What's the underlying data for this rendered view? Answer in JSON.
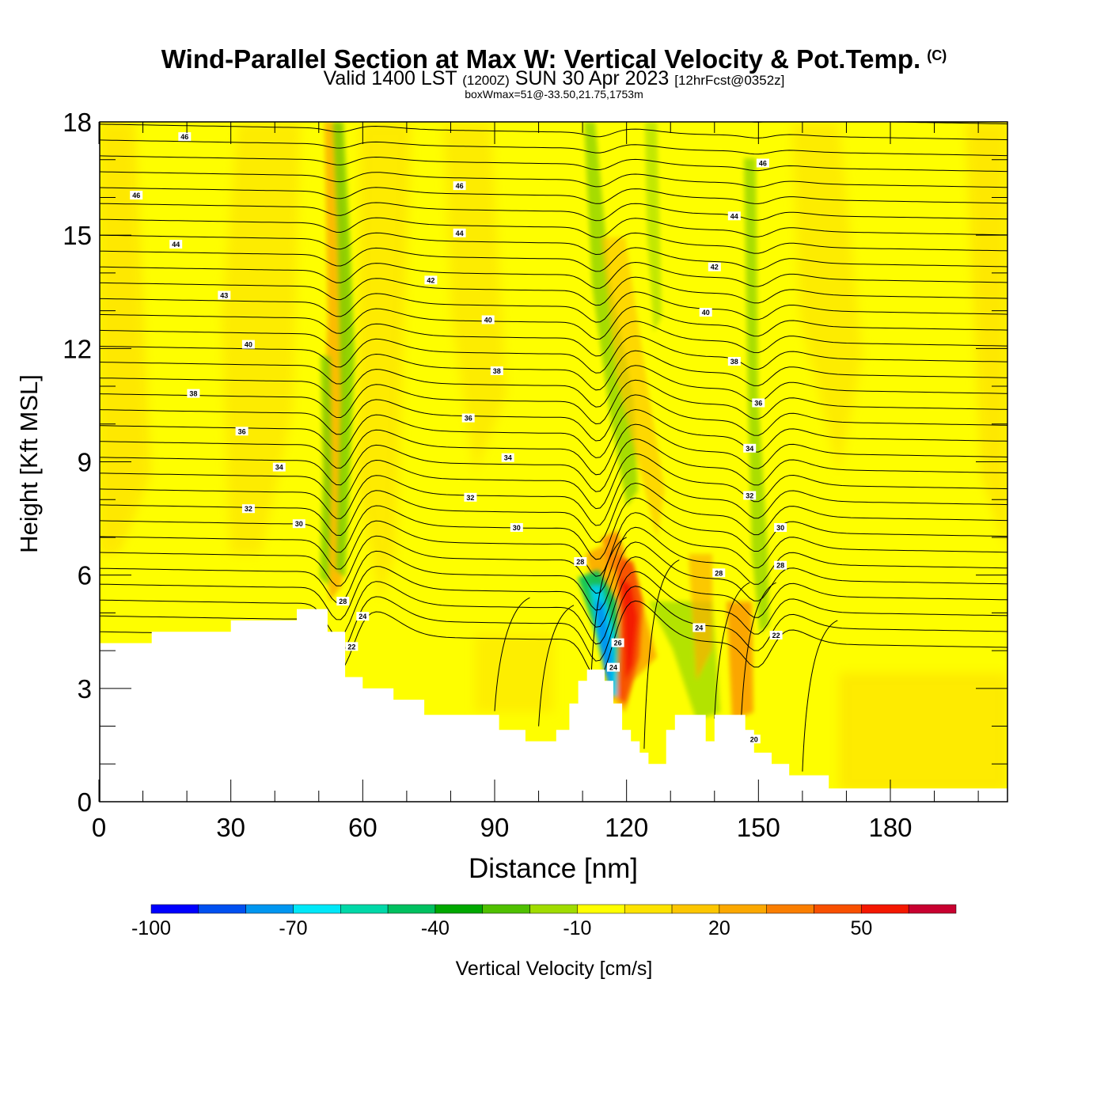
{
  "chart_data": {
    "type": "heatmap",
    "title": "Wind-Parallel Section at Max W: Vertical Velocity & Pot.Temp.",
    "title_mark": "(C)",
    "subtitle": {
      "valid": "Valid 1400 LST",
      "utc": "(1200Z)",
      "date": "SUN 30 Apr 2023",
      "forecast": "[12hrFcst@0352z]"
    },
    "subtitle2": "boxWmax=51@-33.50,21.75,1753m",
    "xlabel": "Distance [nm]",
    "ylabel": "Height [Kft MSL]",
    "xlim": [
      0,
      207
    ],
    "ylim": [
      0,
      18
    ],
    "xticks": [
      0,
      30,
      60,
      90,
      120,
      150,
      180
    ],
    "yticks": [
      0,
      3,
      6,
      9,
      12,
      15,
      18
    ],
    "colorbar": {
      "label": "Vertical Velocity [cm/s]",
      "tick_labels": [
        -100,
        -70,
        -40,
        -10,
        20,
        50
      ],
      "levels": [
        -100,
        -90,
        -80,
        -70,
        -60,
        -50,
        -40,
        -30,
        -20,
        -10,
        0,
        10,
        20,
        30,
        40,
        50,
        60,
        70
      ],
      "colors": [
        "#0000ff",
        "#0050f0",
        "#0096f0",
        "#00e8f8",
        "#00d8a8",
        "#00c060",
        "#00a800",
        "#50c000",
        "#a0dc00",
        "#ffff00",
        "#fde300",
        "#fcc600",
        "#fba800",
        "#fa7e00",
        "#f85000",
        "#f41800",
        "#c80030"
      ]
    },
    "terrain_kft": [
      [
        0,
        4.2
      ],
      [
        12,
        4.2
      ],
      [
        12,
        4.5
      ],
      [
        30,
        4.5
      ],
      [
        30,
        4.8
      ],
      [
        45,
        4.8
      ],
      [
        45,
        5.1
      ],
      [
        52,
        5.1
      ],
      [
        52,
        4.5
      ],
      [
        56,
        4.5
      ],
      [
        56,
        3.3
      ],
      [
        60,
        3.3
      ],
      [
        60,
        3.0
      ],
      [
        67,
        3.0
      ],
      [
        67,
        2.7
      ],
      [
        74,
        2.7
      ],
      [
        74,
        2.3
      ],
      [
        91,
        2.3
      ],
      [
        91,
        1.9
      ],
      [
        97,
        1.9
      ],
      [
        97,
        1.6
      ],
      [
        104,
        1.6
      ],
      [
        104,
        1.9
      ],
      [
        107,
        1.9
      ],
      [
        107,
        2.6
      ],
      [
        109,
        2.6
      ],
      [
        109,
        3.2
      ],
      [
        111,
        3.2
      ],
      [
        111,
        3.5
      ],
      [
        115,
        3.5
      ],
      [
        115,
        3.2
      ],
      [
        117,
        3.2
      ],
      [
        117,
        2.6
      ],
      [
        119,
        2.6
      ],
      [
        119,
        1.9
      ],
      [
        121,
        1.9
      ],
      [
        121,
        1.6
      ],
      [
        123,
        1.6
      ],
      [
        123,
        1.3
      ],
      [
        125,
        1.3
      ],
      [
        125,
        1.0
      ],
      [
        129,
        1.0
      ],
      [
        129,
        1.9
      ],
      [
        131,
        1.9
      ],
      [
        131,
        2.3
      ],
      [
        138,
        2.3
      ],
      [
        138,
        1.6
      ],
      [
        140,
        1.6
      ],
      [
        140,
        2.3
      ],
      [
        147,
        2.3
      ],
      [
        147,
        1.9
      ],
      [
        149,
        1.9
      ],
      [
        149,
        1.3
      ],
      [
        153,
        1.3
      ],
      [
        153,
        1.0
      ],
      [
        157,
        1.0
      ],
      [
        157,
        0.7
      ],
      [
        166,
        0.7
      ],
      [
        166,
        0.35
      ],
      [
        207,
        0.35
      ]
    ],
    "theta_labels": [
      {
        "text": "46",
        "x": 19.5,
        "y": 17.6
      },
      {
        "text": "46",
        "x": 8.5,
        "y": 16.05
      },
      {
        "text": "46",
        "x": 82,
        "y": 16.3
      },
      {
        "text": "46",
        "x": 151,
        "y": 16.9
      },
      {
        "text": "44",
        "x": 17.5,
        "y": 14.75
      },
      {
        "text": "44",
        "x": 82,
        "y": 15.05
      },
      {
        "text": "44",
        "x": 144.5,
        "y": 15.5
      },
      {
        "text": "43",
        "x": 28.5,
        "y": 13.4
      },
      {
        "text": "42",
        "x": 75.5,
        "y": 13.8
      },
      {
        "text": "42",
        "x": 140,
        "y": 14.15
      },
      {
        "text": "40",
        "x": 34,
        "y": 12.1
      },
      {
        "text": "40",
        "x": 88.5,
        "y": 12.75
      },
      {
        "text": "40",
        "x": 138,
        "y": 12.95
      },
      {
        "text": "38",
        "x": 21.5,
        "y": 10.8
      },
      {
        "text": "38",
        "x": 90.5,
        "y": 11.4
      },
      {
        "text": "38",
        "x": 144.5,
        "y": 11.65
      },
      {
        "text": "36",
        "x": 32.5,
        "y": 9.8
      },
      {
        "text": "36",
        "x": 84,
        "y": 10.15
      },
      {
        "text": "36",
        "x": 150,
        "y": 10.55
      },
      {
        "text": "34",
        "x": 41,
        "y": 8.85
      },
      {
        "text": "34",
        "x": 93,
        "y": 9.1
      },
      {
        "text": "34",
        "x": 148,
        "y": 9.35
      },
      {
        "text": "32",
        "x": 34,
        "y": 7.75
      },
      {
        "text": "32",
        "x": 84.5,
        "y": 8.05
      },
      {
        "text": "32",
        "x": 148,
        "y": 8.1
      },
      {
        "text": "30",
        "x": 45.5,
        "y": 7.35
      },
      {
        "text": "30",
        "x": 95,
        "y": 7.25
      },
      {
        "text": "30",
        "x": 155,
        "y": 7.25
      },
      {
        "text": "28",
        "x": 55.5,
        "y": 5.3
      },
      {
        "text": "28",
        "x": 109.5,
        "y": 6.35
      },
      {
        "text": "28",
        "x": 141,
        "y": 6.05
      },
      {
        "text": "28",
        "x": 155,
        "y": 6.25
      },
      {
        "text": "24",
        "x": 60,
        "y": 4.9
      },
      {
        "text": "24",
        "x": 136.5,
        "y": 4.6
      },
      {
        "text": "22",
        "x": 57.5,
        "y": 4.1
      },
      {
        "text": "22",
        "x": 154,
        "y": 4.4
      },
      {
        "text": "26",
        "x": 118,
        "y": 4.2
      },
      {
        "text": "24",
        "x": 117,
        "y": 3.55
      },
      {
        "text": "20",
        "x": 149,
        "y": 1.65
      }
    ]
  }
}
